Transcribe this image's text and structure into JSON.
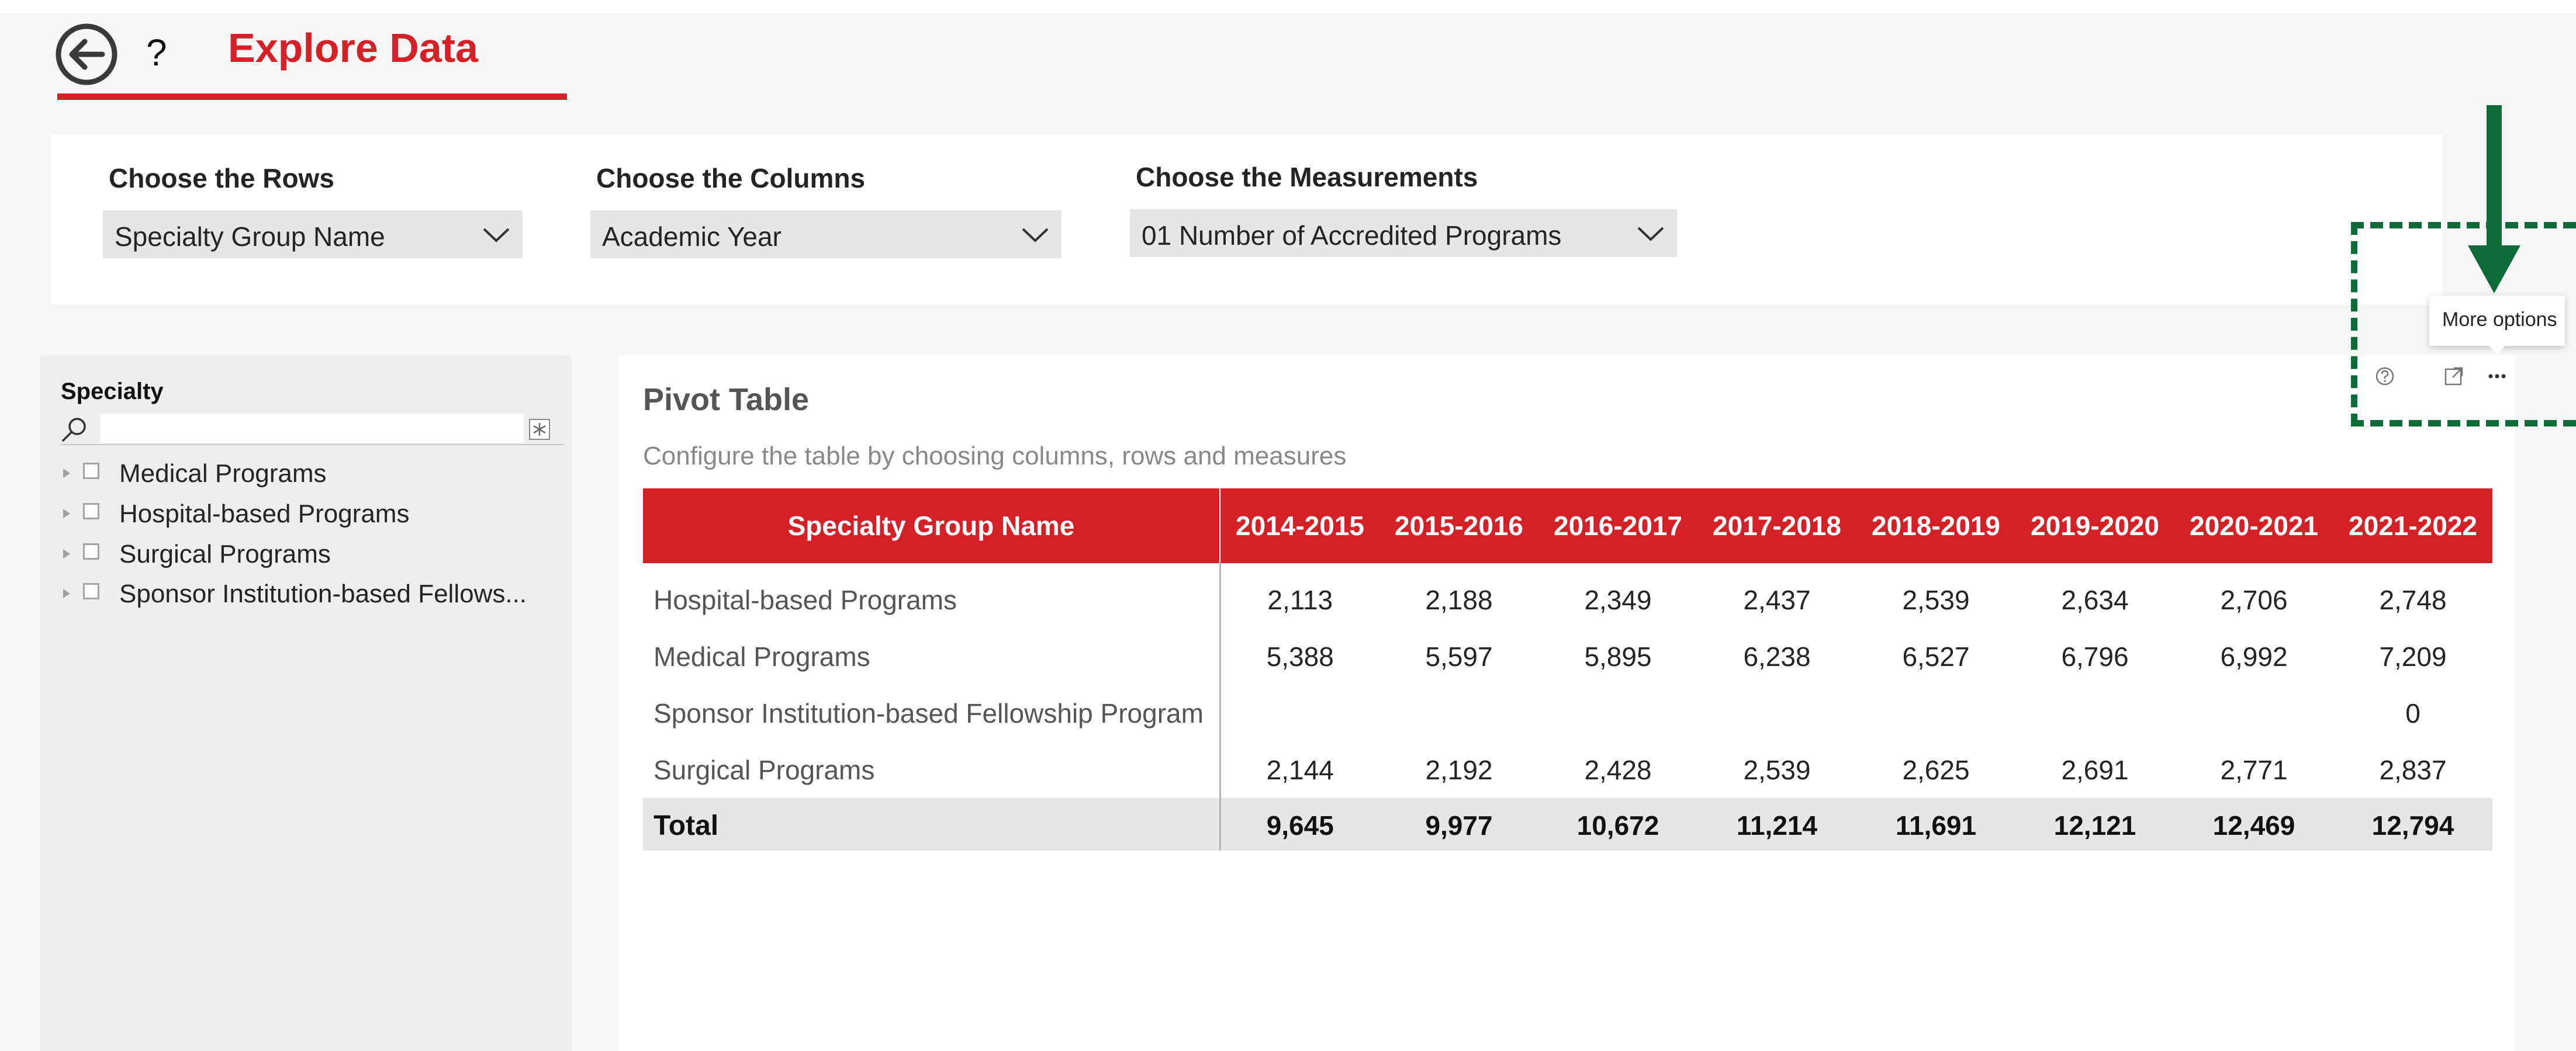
{
  "header": {
    "back_icon": "arrow-left-circle-icon",
    "help_label": "?",
    "title": "Explore Data",
    "accent_color": "#d42127"
  },
  "selectors": [
    {
      "label": "Choose the Rows",
      "value": "Specialty Group Name"
    },
    {
      "label": "Choose the Columns",
      "value": "Academic Year"
    },
    {
      "label": "Choose the Measurements",
      "value": "01 Number of Accredited Programs"
    }
  ],
  "slicer": {
    "title": "Specialty",
    "search_placeholder": "",
    "items": [
      {
        "label": "Medical Programs"
      },
      {
        "label": "Hospital-based Programs"
      },
      {
        "label": "Surgical Programs"
      },
      {
        "label": "Sponsor Institution-based Fellows..."
      }
    ]
  },
  "pivot": {
    "title": "Pivot Table",
    "subtitle": "Configure the table by choosing columns, rows and measures",
    "row_header": "Specialty Group Name",
    "years": [
      "2014-2015",
      "2015-2016",
      "2016-2017",
      "2017-2018",
      "2018-2019",
      "2019-2020",
      "2020-2021",
      "2021-2022"
    ],
    "rows": [
      {
        "name": "Hospital-based Programs",
        "values": [
          "2,113",
          "2,188",
          "2,349",
          "2,437",
          "2,539",
          "2,634",
          "2,706",
          "2,748"
        ]
      },
      {
        "name": "Medical Programs",
        "values": [
          "5,388",
          "5,597",
          "5,895",
          "6,238",
          "6,527",
          "6,796",
          "6,992",
          "7,209"
        ]
      },
      {
        "name": "Sponsor Institution-based Fellowship Program",
        "values": [
          "",
          "",
          "",
          "",
          "",
          "",
          "",
          "0"
        ]
      },
      {
        "name": "Surgical Programs",
        "values": [
          "2,144",
          "2,192",
          "2,428",
          "2,539",
          "2,625",
          "2,691",
          "2,771",
          "2,837"
        ]
      }
    ],
    "total": {
      "name": "Total",
      "values": [
        "9,645",
        "9,977",
        "10,672",
        "11,214",
        "11,691",
        "12,121",
        "12,469",
        "12,794"
      ]
    }
  },
  "visual_header": {
    "tooltip": "More options",
    "icons": [
      "help-circle-icon",
      "focus-mode-icon",
      "more-options-icon"
    ],
    "annotation_color": "#0e6b38"
  }
}
